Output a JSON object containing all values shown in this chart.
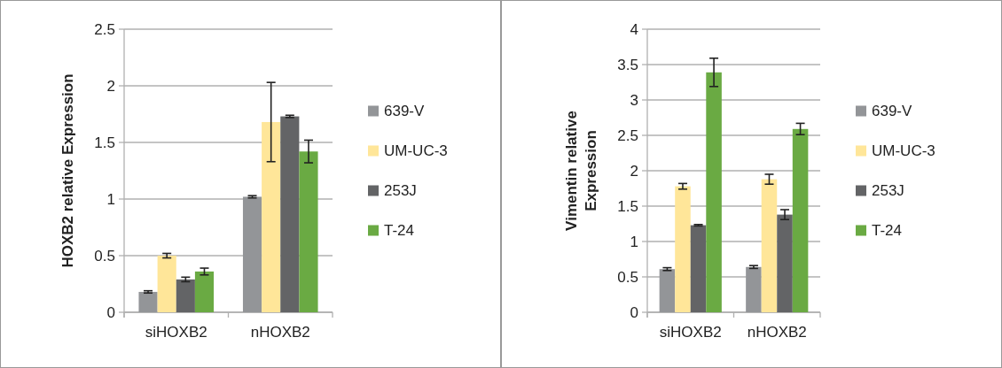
{
  "chart_data": [
    {
      "type": "bar",
      "ylabel": "HOXB2 relative Expression",
      "categories": [
        "siHOXB2",
        "nHOXB2"
      ],
      "ylim": [
        0,
        2.5
      ],
      "yticks": [
        0,
        0.5,
        1,
        1.5,
        2,
        2.5
      ],
      "grid": "y",
      "legend": "right",
      "series": [
        {
          "name": "639-V",
          "color": "#939598",
          "values": [
            0.18,
            1.02
          ],
          "errors": [
            0.01,
            0.01
          ]
        },
        {
          "name": "UM-UC-3",
          "color": "#ffe699",
          "values": [
            0.5,
            1.68
          ],
          "errors": [
            0.02,
            0.35
          ]
        },
        {
          "name": "253J",
          "color": "#636466",
          "values": [
            0.29,
            1.73
          ],
          "errors": [
            0.02,
            0.01
          ]
        },
        {
          "name": "T-24",
          "color": "#6aaa43",
          "values": [
            0.36,
            1.42
          ],
          "errors": [
            0.03,
            0.1
          ]
        }
      ]
    },
    {
      "type": "bar",
      "ylabel": "Vimentin relative Expression",
      "categories": [
        "siHOXB2",
        "nHOXB2"
      ],
      "ylim": [
        0,
        4
      ],
      "yticks": [
        0,
        0.5,
        1,
        1.5,
        2,
        2.5,
        3,
        3.5,
        4
      ],
      "grid": "y",
      "legend": "right",
      "series": [
        {
          "name": "639-V",
          "color": "#939598",
          "values": [
            0.61,
            0.64
          ],
          "errors": [
            0.02,
            0.02
          ]
        },
        {
          "name": "UM-UC-3",
          "color": "#ffe699",
          "values": [
            1.78,
            1.88
          ],
          "errors": [
            0.04,
            0.07
          ]
        },
        {
          "name": "253J",
          "color": "#636466",
          "values": [
            1.23,
            1.38
          ],
          "errors": [
            0.01,
            0.07
          ]
        },
        {
          "name": "T-24",
          "color": "#6aaa43",
          "values": [
            3.39,
            2.59
          ],
          "errors": [
            0.2,
            0.08
          ]
        }
      ]
    }
  ]
}
